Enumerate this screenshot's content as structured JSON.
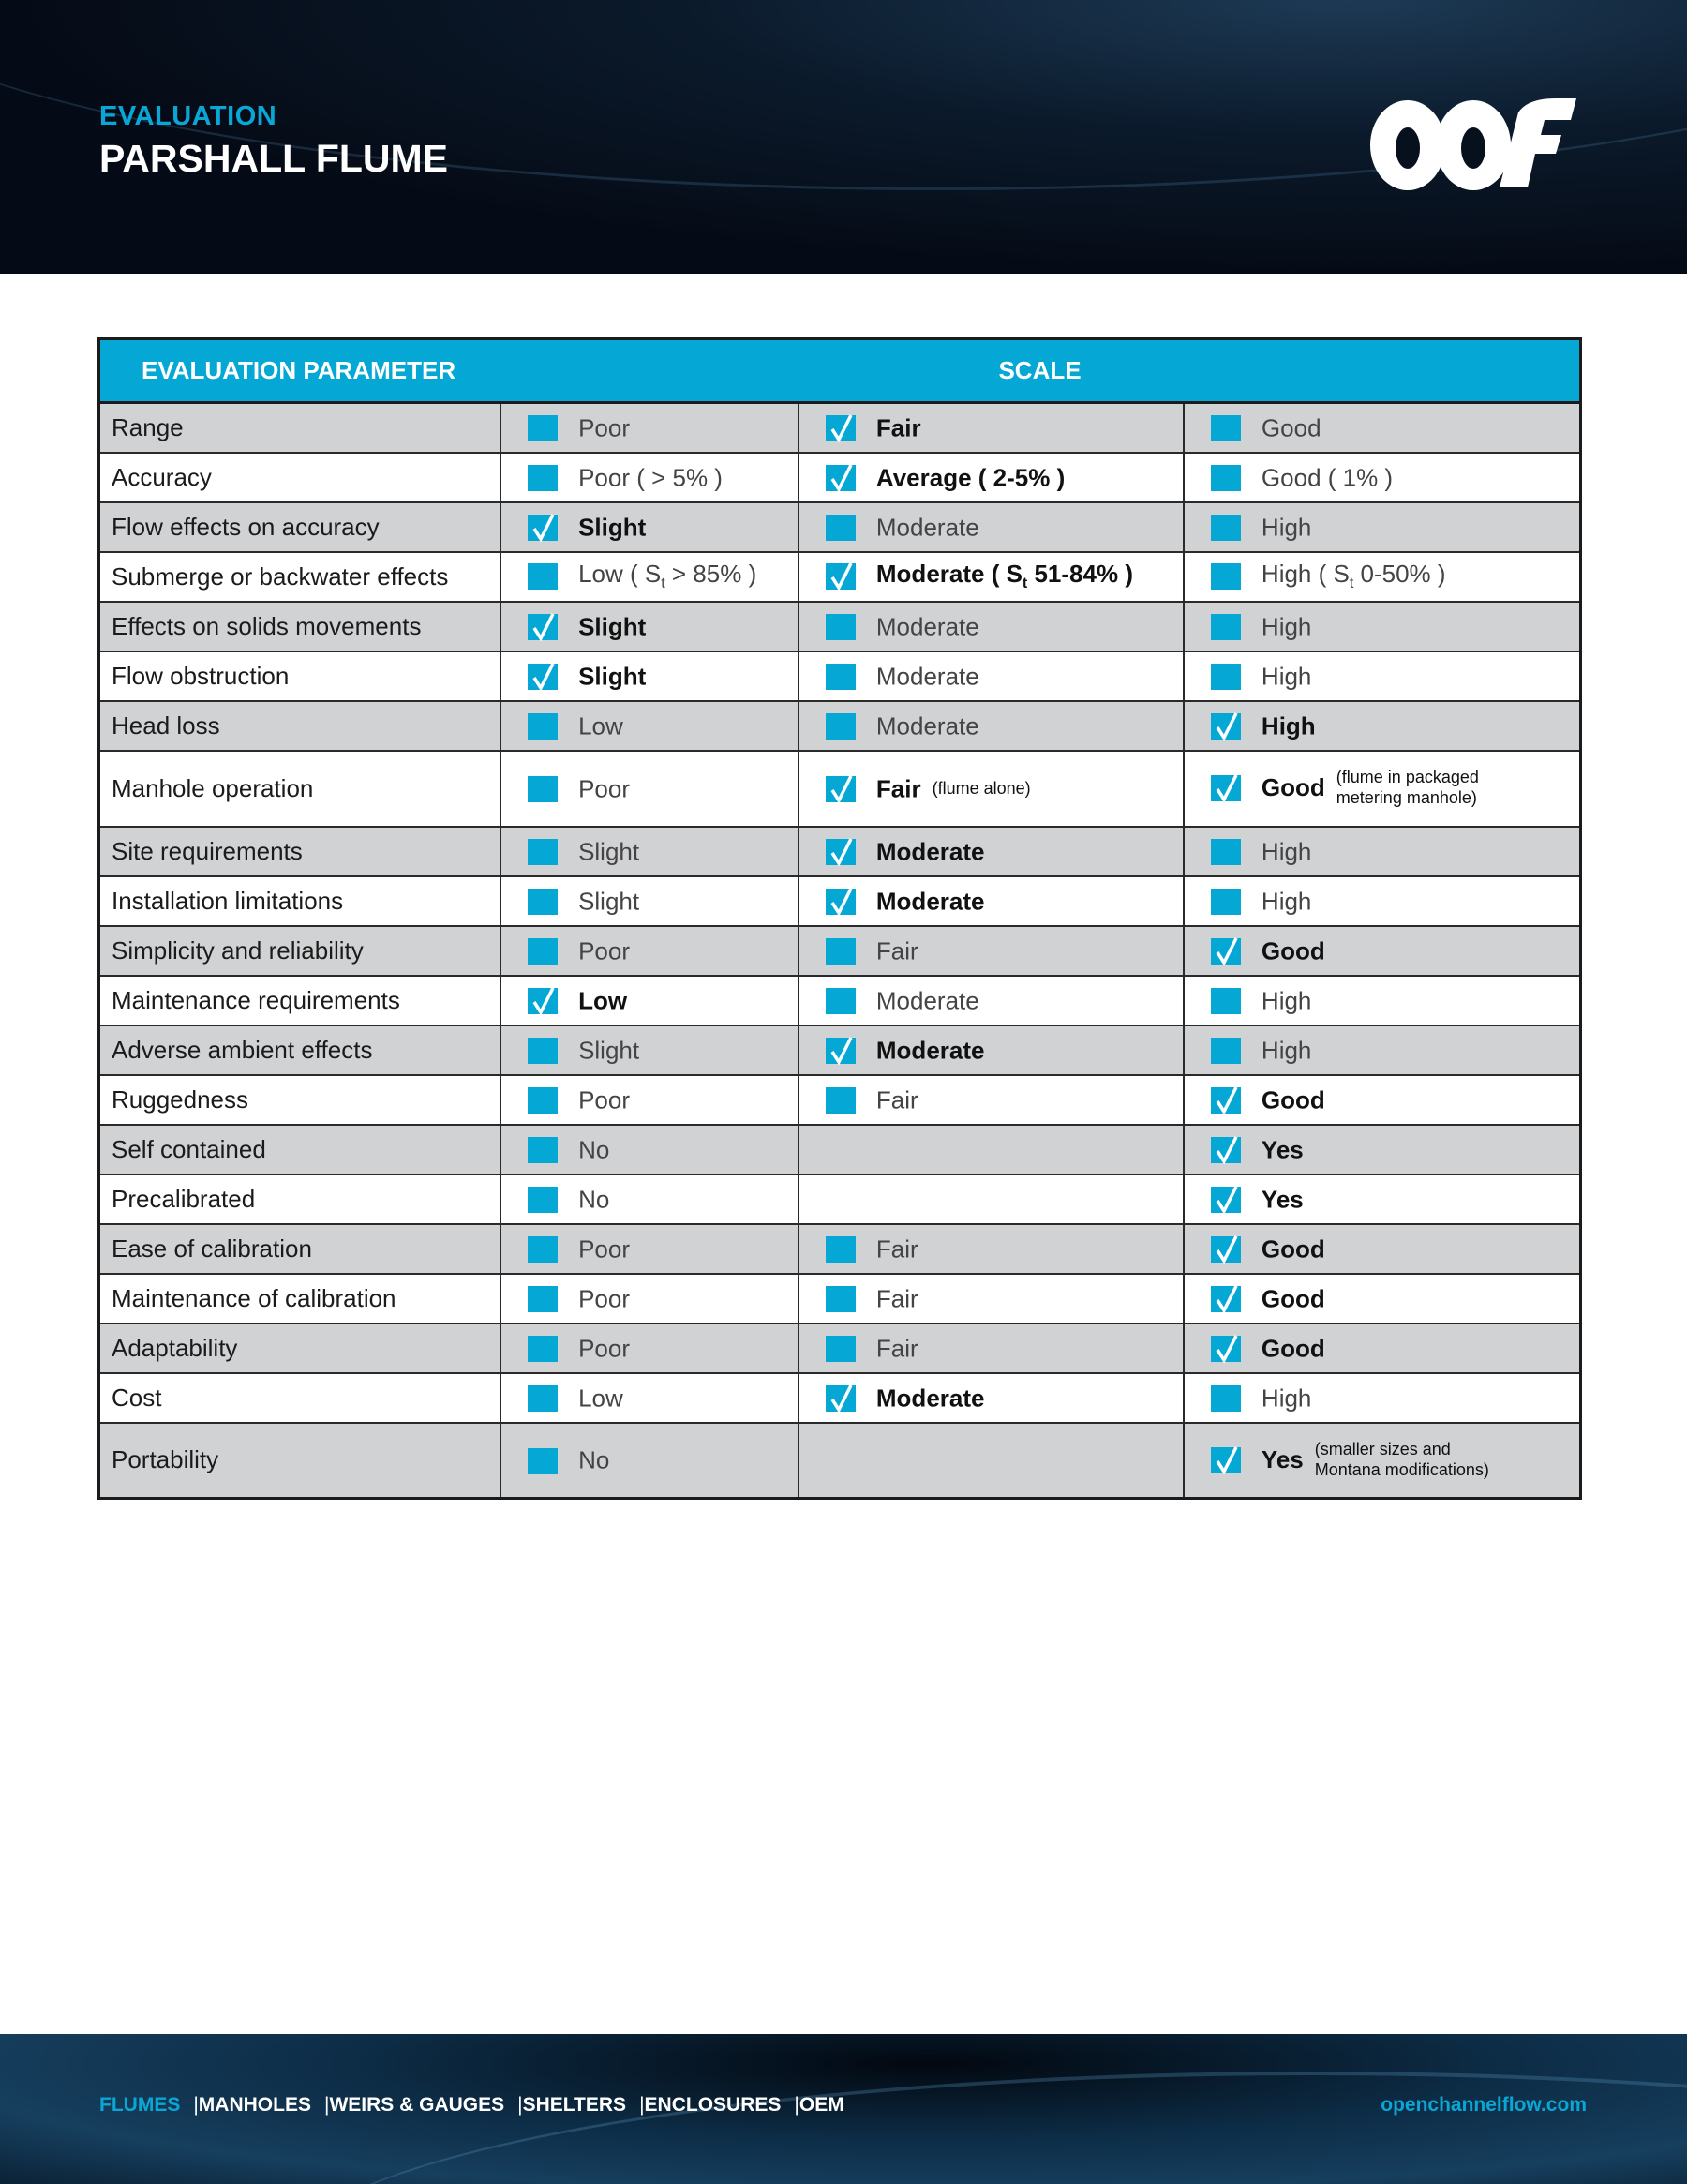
{
  "header": {
    "eyebrow": "EVALUATION",
    "title": "PARSHALL FLUME",
    "logo_text": "OCF"
  },
  "table": {
    "headers": {
      "parameter": "EVALUATION PARAMETER",
      "scale": "SCALE"
    },
    "colors": {
      "accent": "#05a8d4",
      "row_shade": "#d1d2d4"
    },
    "rows": [
      {
        "parameter": "Range",
        "cells": [
          {
            "label": "Poor",
            "checked": false
          },
          {
            "label": "Fair",
            "checked": true
          },
          {
            "label": "Good",
            "checked": false
          }
        ]
      },
      {
        "parameter": "Accuracy",
        "cells": [
          {
            "label": "Poor ( > 5% )",
            "checked": false
          },
          {
            "label": "Average ( 2-5% )",
            "checked": true
          },
          {
            "label": "Good ( 1% )",
            "checked": false
          }
        ]
      },
      {
        "parameter": "Flow effects on accuracy",
        "cells": [
          {
            "label": "Slight",
            "checked": true
          },
          {
            "label": "Moderate",
            "checked": false
          },
          {
            "label": "High",
            "checked": false
          }
        ]
      },
      {
        "parameter": "Submerge or backwater effects",
        "cells": [
          {
            "label": "Low ( S",
            "sub": "t",
            "rest": " > 85% )",
            "checked": false
          },
          {
            "label": "Moderate ( S",
            "sub": "t",
            "rest": " 51-84%  )",
            "checked": true
          },
          {
            "label": "High ( S",
            "sub": "t",
            "rest": " 0-50%  )",
            "checked": false
          }
        ]
      },
      {
        "parameter": "Effects on solids movements",
        "cells": [
          {
            "label": "Slight",
            "checked": true
          },
          {
            "label": "Moderate",
            "checked": false
          },
          {
            "label": "High",
            "checked": false
          }
        ]
      },
      {
        "parameter": "Flow obstruction",
        "cells": [
          {
            "label": "Slight",
            "checked": true
          },
          {
            "label": "Moderate",
            "checked": false
          },
          {
            "label": "High",
            "checked": false
          }
        ]
      },
      {
        "parameter": "Head loss",
        "cells": [
          {
            "label": "Low",
            "checked": false
          },
          {
            "label": "Moderate",
            "checked": false
          },
          {
            "label": "High",
            "checked": true
          }
        ]
      },
      {
        "parameter": "Manhole operation",
        "cells": [
          {
            "label": "Poor",
            "checked": false
          },
          {
            "label": "Fair",
            "note": "(flume alone)",
            "checked": true
          },
          {
            "label": "Good",
            "note": "(flume in packaged metering manhole)",
            "checked": true
          }
        ]
      },
      {
        "parameter": "Site requirements",
        "cells": [
          {
            "label": "Slight",
            "checked": false
          },
          {
            "label": "Moderate",
            "checked": true
          },
          {
            "label": "High",
            "checked": false
          }
        ]
      },
      {
        "parameter": "Installation limitations",
        "cells": [
          {
            "label": "Slight",
            "checked": false
          },
          {
            "label": "Moderate",
            "checked": true
          },
          {
            "label": "High",
            "checked": false
          }
        ]
      },
      {
        "parameter": "Simplicity and reliability",
        "cells": [
          {
            "label": "Poor",
            "checked": false
          },
          {
            "label": "Fair",
            "checked": false
          },
          {
            "label": "Good",
            "checked": true
          }
        ]
      },
      {
        "parameter": "Maintenance requirements",
        "cells": [
          {
            "label": "Low",
            "checked": true
          },
          {
            "label": "Moderate",
            "checked": false
          },
          {
            "label": "High",
            "checked": false
          }
        ]
      },
      {
        "parameter": "Adverse ambient effects",
        "cells": [
          {
            "label": "Slight",
            "checked": false
          },
          {
            "label": "Moderate",
            "checked": true
          },
          {
            "label": "High",
            "checked": false
          }
        ]
      },
      {
        "parameter": "Ruggedness",
        "cells": [
          {
            "label": "Poor",
            "checked": false
          },
          {
            "label": "Fair",
            "checked": false
          },
          {
            "label": "Good",
            "checked": true
          }
        ]
      },
      {
        "parameter": "Self contained",
        "cells": [
          {
            "label": "No",
            "checked": false
          },
          null,
          {
            "label": "Yes",
            "checked": true
          }
        ]
      },
      {
        "parameter": "Precalibrated",
        "cells": [
          {
            "label": "No",
            "checked": false
          },
          null,
          {
            "label": "Yes",
            "checked": true
          }
        ]
      },
      {
        "parameter": "Ease of calibration",
        "cells": [
          {
            "label": "Poor",
            "checked": false
          },
          {
            "label": "Fair",
            "checked": false
          },
          {
            "label": "Good",
            "checked": true
          }
        ]
      },
      {
        "parameter": "Maintenance of calibration",
        "cells": [
          {
            "label": "Poor",
            "checked": false
          },
          {
            "label": "Fair",
            "checked": false
          },
          {
            "label": "Good",
            "checked": true
          }
        ]
      },
      {
        "parameter": "Adaptability",
        "cells": [
          {
            "label": "Poor",
            "checked": false
          },
          {
            "label": "Fair",
            "checked": false
          },
          {
            "label": "Good",
            "checked": true
          }
        ]
      },
      {
        "parameter": "Cost",
        "cells": [
          {
            "label": "Low",
            "checked": false
          },
          {
            "label": "Moderate",
            "checked": true
          },
          {
            "label": "High",
            "checked": false
          }
        ]
      },
      {
        "parameter": "Portability",
        "cells": [
          {
            "label": "No",
            "checked": false
          },
          null,
          {
            "label": "Yes",
            "note": "(smaller sizes and Montana modifications)",
            "checked": true
          }
        ]
      }
    ]
  },
  "footer": {
    "nav": [
      "FLUMES",
      "MANHOLES",
      "WEIRS & GAUGES",
      "SHELTERS",
      "ENCLOSURES",
      "OEM"
    ],
    "separator": "|",
    "url": "openchannelflow.com"
  }
}
